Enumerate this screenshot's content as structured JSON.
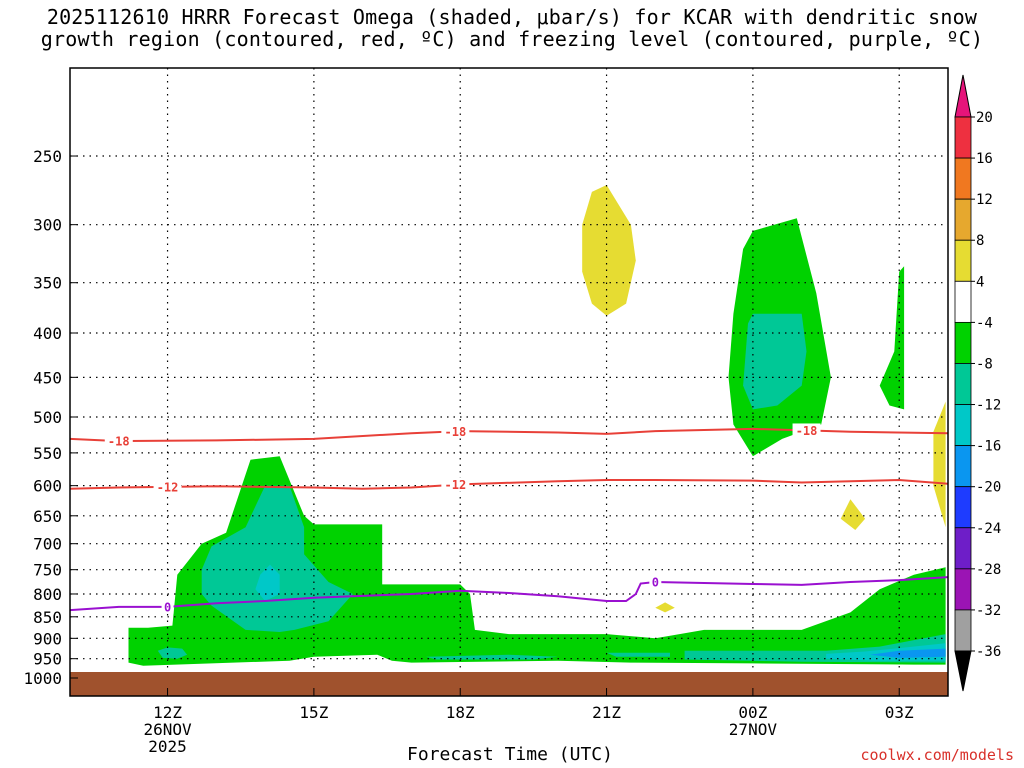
{
  "chart_data": {
    "type": "heatmap",
    "title_line1": "2025112610 HRRR Forecast Omega (shaded, μbar/s) for KCAR with dendritic snow",
    "title_line2": "growth region (contoured, red, ºC) and freezing level (contoured, purple, ºC)",
    "xlabel": "Forecast Time (UTC)",
    "x_ticks": [
      {
        "hour": 12,
        "label": "12Z",
        "sub1": "26NOV",
        "sub2": "2025"
      },
      {
        "hour": 15,
        "label": "15Z",
        "sub1": "",
        "sub2": ""
      },
      {
        "hour": 18,
        "label": "18Z",
        "sub1": "",
        "sub2": ""
      },
      {
        "hour": 21,
        "label": "21Z",
        "sub1": "",
        "sub2": ""
      },
      {
        "hour": 24,
        "label": "00Z",
        "sub1": "27NOV",
        "sub2": ""
      },
      {
        "hour": 27,
        "label": "03Z",
        "sub1": "",
        "sub2": ""
      }
    ],
    "x_range_hours": [
      10,
      28
    ],
    "y_ticks": [
      250,
      300,
      350,
      400,
      450,
      500,
      550,
      600,
      650,
      700,
      750,
      800,
      850,
      900,
      950,
      1000
    ],
    "y_range_hpa": [
      1000,
      200
    ],
    "ground_level_hpa": 985,
    "colorbar": {
      "labels": [
        "20",
        "16",
        "12",
        "8",
        "4",
        "-4",
        "-8",
        "-12",
        "-16",
        "-20",
        "-24",
        "-28",
        "-32",
        "-36"
      ],
      "colors": [
        "#ee3040",
        "#f07820",
        "#e6a82e",
        "#e6dc32",
        "#ffffff",
        "#00d200",
        "#00c896",
        "#00c8c8",
        "#0a96f0",
        "#1e3cff",
        "#6e1ec8",
        "#9b14b4",
        "#a0a0a0"
      ],
      "top_arrow_color": "#e6147a",
      "bottom_arrow_color": "#000000"
    },
    "shading_regions": [
      {
        "level": "-4",
        "color": "#00d200",
        "points": [
          [
            11.2,
            875
          ],
          [
            11.2,
            960
          ],
          [
            11.5,
            968
          ],
          [
            14.5,
            955
          ],
          [
            15,
            945
          ],
          [
            16.3,
            940
          ],
          [
            16.6,
            955
          ],
          [
            17,
            960
          ],
          [
            20,
            955
          ],
          [
            21.5,
            960
          ],
          [
            24,
            962
          ],
          [
            27.3,
            965
          ],
          [
            27.95,
            965
          ],
          [
            27.95,
            745
          ],
          [
            27.3,
            760
          ],
          [
            26.6,
            790
          ],
          [
            26,
            840
          ],
          [
            25,
            880
          ],
          [
            23,
            880
          ],
          [
            22,
            900
          ],
          [
            21,
            890
          ],
          [
            19,
            890
          ],
          [
            18.3,
            880
          ],
          [
            18.2,
            800
          ],
          [
            18,
            780
          ],
          [
            17,
            780
          ],
          [
            16.4,
            780
          ],
          [
            16.4,
            665
          ],
          [
            15,
            665
          ],
          [
            14.8,
            650
          ],
          [
            14.3,
            555
          ],
          [
            13.7,
            560
          ],
          [
            13.2,
            680
          ],
          [
            12.7,
            700
          ],
          [
            12.2,
            760
          ],
          [
            12.1,
            870
          ],
          [
            11.6,
            875
          ]
        ]
      },
      {
        "level": "-8",
        "color": "#00c896",
        "points": [
          [
            12.7,
            750
          ],
          [
            12.9,
            705
          ],
          [
            13.6,
            670
          ],
          [
            14,
            600
          ],
          [
            14.5,
            600
          ],
          [
            14.8,
            670
          ],
          [
            14.8,
            720
          ],
          [
            15.3,
            775
          ],
          [
            15.8,
            800
          ],
          [
            15.3,
            860
          ],
          [
            14.6,
            880
          ],
          [
            14.3,
            885
          ],
          [
            13.6,
            880
          ],
          [
            12.9,
            825
          ],
          [
            12.7,
            800
          ]
        ]
      },
      {
        "level": "-12",
        "color": "#00c8c8",
        "points": [
          [
            13.8,
            790
          ],
          [
            13.9,
            760
          ],
          [
            14.1,
            740
          ],
          [
            14.3,
            760
          ],
          [
            14.3,
            800
          ],
          [
            14,
            815
          ]
        ]
      },
      {
        "level": "-8b",
        "color": "#00c896",
        "points": [
          [
            11.8,
            930
          ],
          [
            12,
            922
          ],
          [
            12.3,
            925
          ],
          [
            12.4,
            940
          ],
          [
            12.2,
            950
          ],
          [
            11.9,
            948
          ]
        ]
      },
      {
        "level": "-8c",
        "color": "#00c896",
        "points": [
          [
            17.3,
            945
          ],
          [
            19,
            940
          ],
          [
            20,
            945
          ],
          [
            19.5,
            952
          ],
          [
            17.5,
            952
          ]
        ]
      },
      {
        "level": "-8d",
        "color": "#00c896",
        "points": [
          [
            21,
            935
          ],
          [
            22.3,
            935
          ],
          [
            22.3,
            945
          ],
          [
            21.2,
            945
          ]
        ]
      },
      {
        "level": "-8e",
        "color": "#00c896",
        "points": [
          [
            22.6,
            930
          ],
          [
            25.5,
            930
          ],
          [
            26.6,
            920
          ],
          [
            27.95,
            890
          ],
          [
            27.95,
            960
          ],
          [
            25,
            958
          ],
          [
            22.6,
            952
          ]
        ]
      },
      {
        "level": "-12b",
        "color": "#00c8c8",
        "points": [
          [
            25.5,
            938
          ],
          [
            26.3,
            932
          ],
          [
            27.95,
            912
          ],
          [
            27.95,
            955
          ],
          [
            26.5,
            955
          ],
          [
            25.5,
            950
          ]
        ]
      },
      {
        "level": "-16",
        "color": "#0a96f0",
        "points": [
          [
            26.4,
            940
          ],
          [
            27,
            930
          ],
          [
            27.95,
            925
          ],
          [
            27.95,
            945
          ],
          [
            27,
            948
          ]
        ]
      },
      {
        "level": "-4b",
        "color": "#00d200",
        "points": [
          [
            23.8,
            320
          ],
          [
            24,
            305
          ],
          [
            24.9,
            295
          ],
          [
            25.3,
            360
          ],
          [
            25.6,
            450
          ],
          [
            25.4,
            510
          ],
          [
            24.6,
            530
          ],
          [
            24.0,
            555
          ],
          [
            23.6,
            510
          ],
          [
            23.5,
            450
          ],
          [
            23.6,
            380
          ]
        ]
      },
      {
        "level": "-8f",
        "color": "#00c896",
        "points": [
          [
            23.8,
            460
          ],
          [
            23.9,
            390
          ],
          [
            24,
            380
          ],
          [
            25,
            380
          ],
          [
            25.1,
            420
          ],
          [
            25,
            460
          ],
          [
            24.5,
            485
          ],
          [
            24,
            490
          ]
        ]
      },
      {
        "level": "-4c",
        "color": "#00d200",
        "points": [
          [
            27,
            340
          ],
          [
            27.1,
            335
          ],
          [
            27.1,
            420
          ],
          [
            27.1,
            490
          ],
          [
            26.8,
            485
          ],
          [
            26.6,
            460
          ],
          [
            26.9,
            420
          ]
        ]
      },
      {
        "level": "4",
        "color": "#e6dc32",
        "points": [
          [
            20.5,
            300
          ],
          [
            20.7,
            275
          ],
          [
            21,
            270
          ],
          [
            21.5,
            300
          ],
          [
            21.6,
            330
          ],
          [
            21.4,
            370
          ],
          [
            21,
            382
          ],
          [
            20.7,
            370
          ],
          [
            20.5,
            340
          ]
        ]
      },
      {
        "level": "4b",
        "color": "#e6dc32",
        "points": [
          [
            25.8,
            655
          ],
          [
            26,
            622
          ],
          [
            26.3,
            655
          ],
          [
            26.1,
            675
          ]
        ]
      },
      {
        "level": "4c",
        "color": "#e6dc32",
        "points": [
          [
            22,
            830
          ],
          [
            22.2,
            818
          ],
          [
            22.4,
            830
          ],
          [
            22.2,
            840
          ]
        ]
      },
      {
        "level": "4d",
        "color": "#e6dc32",
        "points": [
          [
            27.7,
            520
          ],
          [
            27.95,
            480
          ],
          [
            27.95,
            670
          ],
          [
            27.7,
            600
          ]
        ]
      }
    ],
    "contours": [
      {
        "name": "-18",
        "color": "#e84038",
        "label": "-18",
        "label_hours": [
          11,
          17.9,
          25.1
        ],
        "points": [
          [
            10,
            530
          ],
          [
            11,
            533
          ],
          [
            13,
            532
          ],
          [
            15,
            530
          ],
          [
            17,
            522
          ],
          [
            18,
            519
          ],
          [
            20,
            521
          ],
          [
            21,
            523
          ],
          [
            22,
            519
          ],
          [
            24,
            516
          ],
          [
            25,
            518
          ],
          [
            26,
            520
          ],
          [
            28,
            522
          ]
        ]
      },
      {
        "name": "-12",
        "color": "#e84038",
        "label": "-12",
        "label_hours": [
          12,
          17.9
        ],
        "points": [
          [
            10,
            605
          ],
          [
            11,
            603
          ],
          [
            13,
            601
          ],
          [
            15,
            603
          ],
          [
            16,
            605
          ],
          [
            17,
            603
          ],
          [
            18,
            598
          ],
          [
            20,
            593
          ],
          [
            21,
            591
          ],
          [
            22,
            591
          ],
          [
            24,
            592
          ],
          [
            25,
            595
          ],
          [
            26,
            593
          ],
          [
            27,
            591
          ],
          [
            28,
            597
          ]
        ]
      },
      {
        "name": "0",
        "color": "#9a10d0",
        "label": "0",
        "label_hours": [
          12,
          22.0
        ],
        "points": [
          [
            10,
            835
          ],
          [
            11,
            828
          ],
          [
            12,
            828
          ],
          [
            13,
            820
          ],
          [
            14,
            815
          ],
          [
            15,
            808
          ],
          [
            17,
            800
          ],
          [
            18,
            793
          ],
          [
            19,
            798
          ],
          [
            20,
            805
          ],
          [
            21,
            815
          ],
          [
            21.4,
            815
          ],
          [
            21.6,
            800
          ],
          [
            21.7,
            778
          ],
          [
            22,
            775
          ],
          [
            23,
            777
          ],
          [
            24,
            779
          ],
          [
            25,
            781
          ],
          [
            26,
            775
          ],
          [
            27,
            771
          ],
          [
            28,
            765
          ]
        ]
      }
    ]
  },
  "credit": "coolwx.com/models"
}
